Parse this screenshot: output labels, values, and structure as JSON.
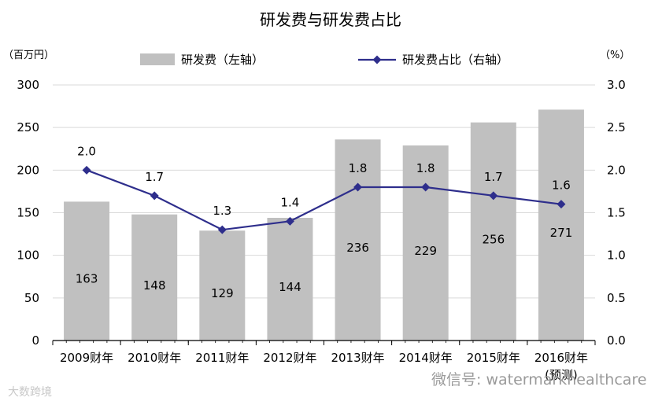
{
  "chart_data": {
    "type": "bar+line",
    "title": "研发费与研发费占比",
    "ylabel_left": "（百万円）",
    "ylabel_right": "（%）",
    "categories": [
      "2009财年",
      "2010财年",
      "2011财年",
      "2012财年",
      "2013财年",
      "2014财年",
      "2015财年",
      "2016财年"
    ],
    "last_category_suffix": "(预测)",
    "series": [
      {
        "name": "研发费（左轴）",
        "type": "bar",
        "axis": "left",
        "color": "#c0c0c0",
        "values": [
          163,
          148,
          129,
          144,
          236,
          229,
          256,
          271
        ],
        "labels": [
          "163",
          "148",
          "129",
          "144",
          "236",
          "229",
          "256",
          "271"
        ]
      },
      {
        "name": "研发费占比（右轴）",
        "type": "line",
        "axis": "right",
        "color": "#2e2e8c",
        "values": [
          2.0,
          1.7,
          1.3,
          1.4,
          1.8,
          1.8,
          1.7,
          1.6
        ],
        "labels": [
          "2.0",
          "1.7",
          "1.3",
          "1.4",
          "1.8",
          "1.8",
          "1.7",
          "1.6"
        ]
      }
    ],
    "ylim_left": [
      0,
      300
    ],
    "yticks_left": [
      "0",
      "50",
      "100",
      "150",
      "200",
      "250",
      "300"
    ],
    "ylim_right": [
      0,
      3.0
    ],
    "yticks_right": [
      "0.0",
      "0.5",
      "1.0",
      "1.5",
      "2.0",
      "2.5",
      "3.0"
    ],
    "grid": true,
    "legend_position": "top"
  },
  "watermarks": {
    "left": "大数跨境",
    "right": "微信号: watermarkhealthcare"
  }
}
